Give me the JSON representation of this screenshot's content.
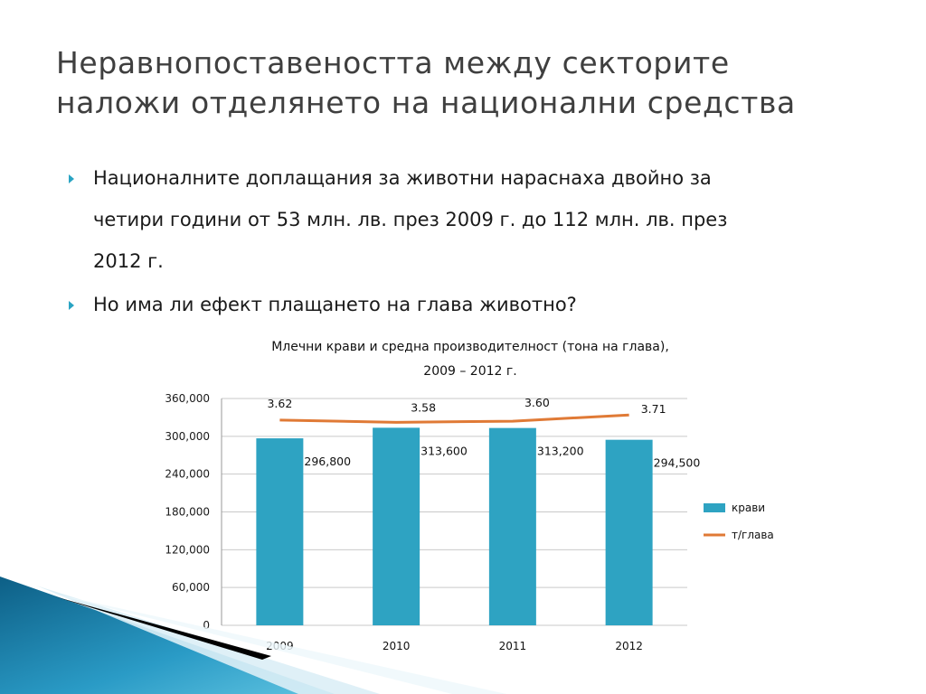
{
  "slide": {
    "title_line1": "Неравнопоставеността между секторите",
    "title_line2": "наложи отделянето на национални средства",
    "bullets": [
      {
        "line1": "Националните доплащания за животни нараснаха двойно за",
        "line2": "четири години от 53 млн. лв. през 2009 г. до 112 млн. лв. през",
        "line3": "2012 г."
      },
      {
        "line1": "Но има ли ефект плащането на глава животно?"
      }
    ]
  },
  "chart_data": {
    "type": "bar",
    "title_line1": "Млечни крави и средна производителност (тона на глава),",
    "title_line2": "2009 – 2012 г.",
    "categories": [
      "2009",
      "2010",
      "2011",
      "2012"
    ],
    "series": [
      {
        "name": "крави",
        "type": "bar",
        "values": [
          296800,
          313600,
          313200,
          294500
        ],
        "labels": [
          "296,800",
          "313,600",
          "313,200",
          "294,500"
        ],
        "color": "#2ea3c2"
      },
      {
        "name": "т/глава",
        "type": "line",
        "values": [
          3.62,
          3.58,
          3.6,
          3.71
        ],
        "labels": [
          "3.62",
          "3.58",
          "3.60",
          "3.71"
        ],
        "color": "#e07a36"
      }
    ],
    "y_axis": {
      "min": 0,
      "max": 360000,
      "ticks": [
        0,
        60000,
        120000,
        180000,
        240000,
        300000,
        360000
      ],
      "tick_labels": [
        "0",
        "60,000",
        "120,000",
        "180,000",
        "240,000",
        "300,000",
        "360,000"
      ]
    },
    "line_axis": {
      "hidden": true,
      "min": 0,
      "max": 4
    },
    "grid": true,
    "legend_position": "right"
  }
}
